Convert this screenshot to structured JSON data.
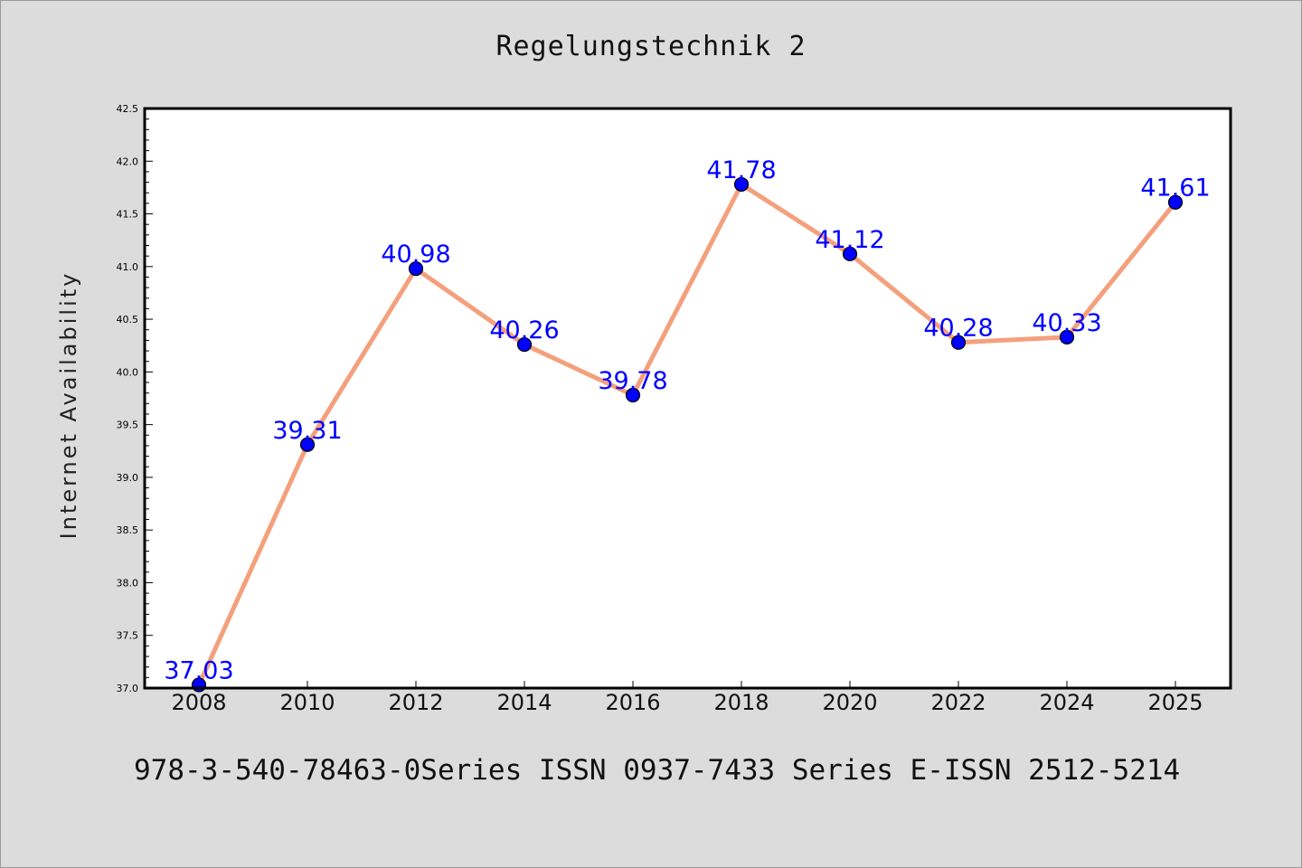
{
  "chart_data": {
    "type": "line",
    "title": "Regelungstechnik 2",
    "ylabel": "Internet Availability",
    "xlabel": "",
    "categories": [
      "2008",
      "2010",
      "2012",
      "2014",
      "2016",
      "2018",
      "2020",
      "2022",
      "2024",
      "2025"
    ],
    "series": [
      {
        "values": [
          37.03,
          39.31,
          40.98,
          40.26,
          39.78,
          41.78,
          41.12,
          40.28,
          40.33,
          41.61
        ],
        "labels": [
          "37.03",
          "39.31",
          "40.98",
          "40.26",
          "39.78",
          "41.78",
          "41.12",
          "40.28",
          "40.33",
          "41.61"
        ]
      }
    ],
    "ylim": [
      37.0,
      42.5
    ],
    "yticks": [
      "37.0",
      "37.5",
      "38.0",
      "38.5",
      "39.0",
      "39.5",
      "40.0",
      "40.5",
      "41.0",
      "41.5",
      "42.0",
      "42.5"
    ],
    "grid": false,
    "colors": {
      "line": "#f4a07c",
      "marker": "#0000ff",
      "label": "#0000ff",
      "plot_bg": "#ffffff",
      "page_bg": "#dcdcdc"
    }
  },
  "footer": "978-3-540-78463-0Series ISSN 0937-7433 Series E-ISSN 2512-5214"
}
